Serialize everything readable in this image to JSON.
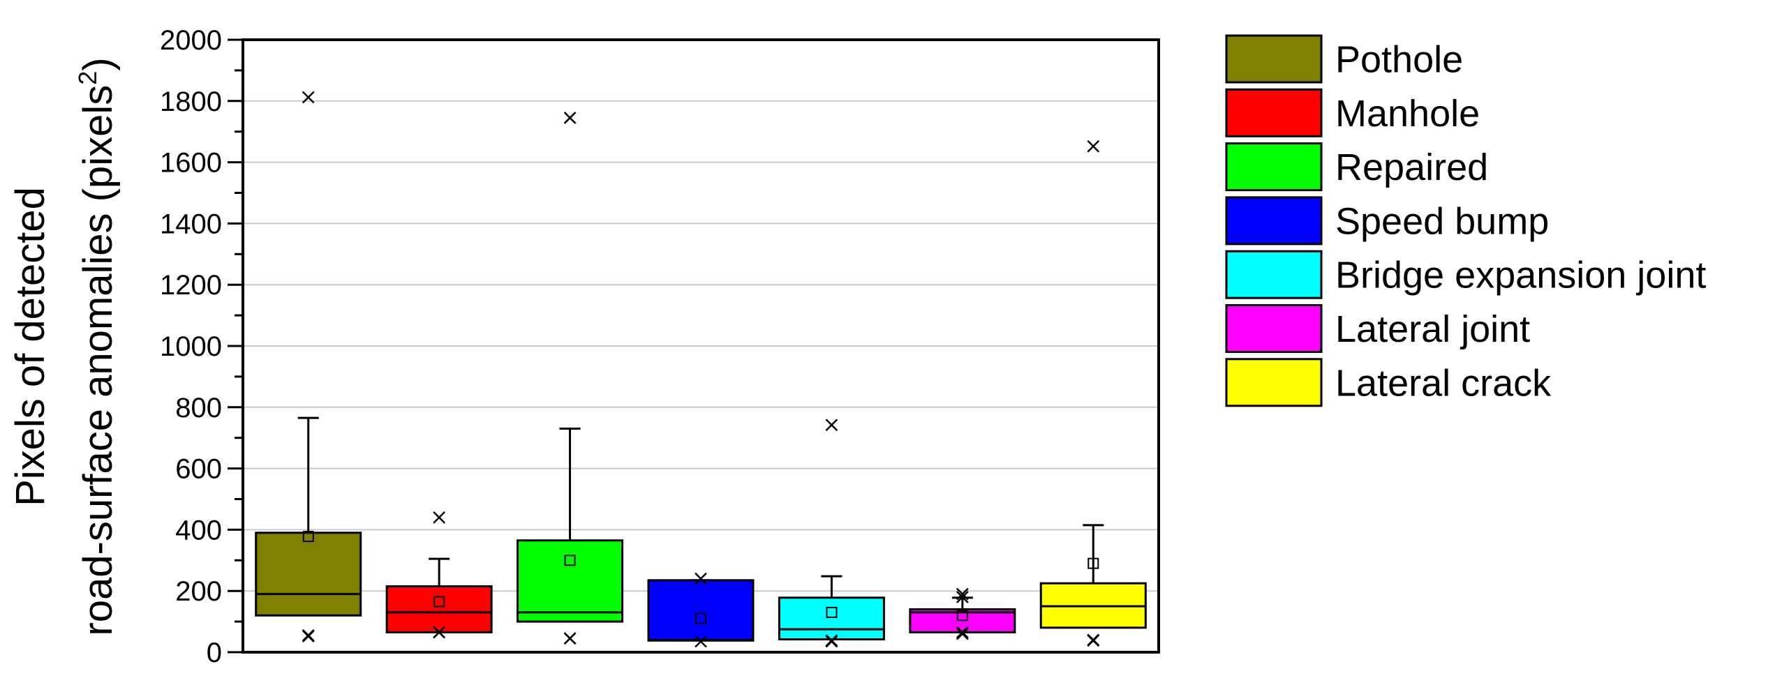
{
  "chart_data": {
    "type": "box",
    "ylabel_line1": "Pixels of detected",
    "ylabel_line2_main": "road-surface anomalies (pixels",
    "ylabel_line2_sup": "2",
    "ylabel_line2_end": ")",
    "ylim": [
      0,
      2000
    ],
    "yticks": [
      "0",
      "200",
      "400",
      "600",
      "800",
      "1000",
      "1200",
      "1400",
      "1600",
      "1800",
      "2000"
    ],
    "grid": true,
    "legend_position": "right",
    "series": [
      {
        "name": "Pothole",
        "color": "#808000",
        "q1": 120,
        "median": 190,
        "q3": 390,
        "whisker_low": 120,
        "whisker_high": 765,
        "mean": 378,
        "outliers_high": [
          1812
        ],
        "markers_low": [
          55,
          52
        ]
      },
      {
        "name": "Manhole",
        "color": "#ff0000",
        "q1": 65,
        "median": 130,
        "q3": 215,
        "whisker_low": 65,
        "whisker_high": 305,
        "mean": 165,
        "outliers_high": [
          440
        ],
        "markers_low": [
          65,
          65
        ]
      },
      {
        "name": "Repaired",
        "color": "#00ff00",
        "q1": 100,
        "median": 130,
        "q3": 365,
        "whisker_low": 100,
        "whisker_high": 730,
        "mean": 300,
        "outliers_high": [
          1745
        ],
        "markers_low": [
          45,
          45
        ]
      },
      {
        "name": "Speed bump",
        "color": "#0000ff",
        "q1": 38,
        "median": 40,
        "q3": 235,
        "whisker_low": 38,
        "whisker_high": 235,
        "mean": 110,
        "outliers_high": [
          240
        ],
        "markers_low": [
          35
        ]
      },
      {
        "name": "Bridge expansion joint",
        "color": "#00ffff",
        "q1": 42,
        "median": 75,
        "q3": 178,
        "whisker_low": 42,
        "whisker_high": 248,
        "mean": 130,
        "outliers_high": [
          742
        ],
        "markers_low": [
          38,
          35
        ]
      },
      {
        "name": "Lateral joint",
        "color": "#ff00ff",
        "q1": 65,
        "median": 130,
        "q3": 140,
        "whisker_low": 65,
        "whisker_high": 178,
        "mean": 120,
        "outliers_high": [
          190,
          180
        ],
        "markers_low": [
          65,
          60
        ]
      },
      {
        "name": "Lateral crack",
        "color": "#ffff00",
        "q1": 80,
        "median": 150,
        "q3": 225,
        "whisker_low": 80,
        "whisker_high": 415,
        "mean": 290,
        "outliers_high": [
          1652
        ],
        "markers_low": [
          40,
          38
        ]
      }
    ]
  }
}
